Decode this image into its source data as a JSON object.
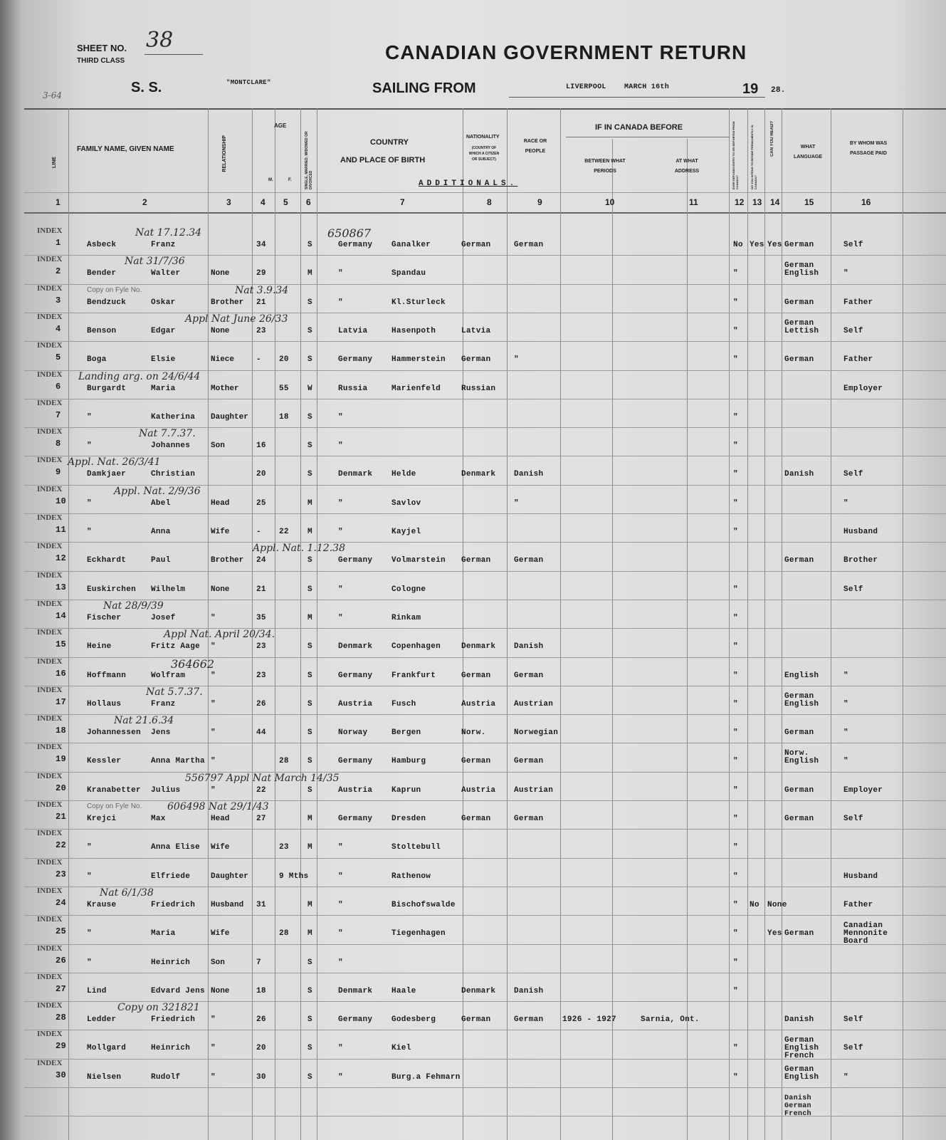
{
  "header": {
    "sheet_label": "SHEET NO.",
    "sheet_no": "38",
    "class": "THIRD CLASS",
    "ss_label": "S. S.",
    "ship": "\"MONTCLARE\"",
    "title": "CANADIAN GOVERNMENT RETURN",
    "sailing_label": "SAILING FROM",
    "port": "LIVERPOOL",
    "date": "MARCH 16th",
    "year_prefix": "19",
    "year_suffix": "28.",
    "margin_note": "3-64",
    "section": "ADDITIONALS."
  },
  "columns": {
    "line": "LINE",
    "names": "FAMILY NAME,  GIVEN NAME",
    "relationship": "RELATIONSHIP",
    "age": "AGE",
    "m": "M.",
    "f": "F.",
    "marital": "SINGLE, MARRIED, WIDOWED OR DIVORCED",
    "country_1": "COUNTRY",
    "country_2": "AND PLACE OF BIRTH",
    "nationality": "NATIONALITY",
    "nationality_sub": "(COUNTRY OF WHICH A CITIZEN OR SUBJECT)",
    "race": "RACE OR PEOPLE",
    "canada_before": "IF IN CANADA BEFORE",
    "periods": "BETWEEN WHAT PERIODS",
    "address": "AT WHAT ADDRESS",
    "refused": "EVER REFUSED ENTRY TO OR DEPORTED FROM CANADA?",
    "intend": "DO YOU INTEND TO RESIDE PERMANENTLY IN CANADA?",
    "read": "CAN YOU READ?",
    "language": "WHAT LANGUAGE",
    "paid": "BY WHOM WAS PASSAGE PAID",
    "numbers": [
      "1",
      "2",
      "3",
      "4",
      "5",
      "6",
      "7",
      "8",
      "9",
      "10",
      "11",
      "12",
      "13",
      "14",
      "15",
      "16"
    ]
  },
  "rows": [
    {
      "line": "1",
      "family": "Asbeck",
      "given": "Franz",
      "rel": "",
      "m": "34",
      "f": "",
      "marital": "S",
      "country": "Germany",
      "place": "Ganalker",
      "nat": "German",
      "race": "German",
      "periods": "",
      "address": "",
      "refused": "No",
      "intend": "Yes",
      "read": "Yes",
      "lang": "German",
      "paid": "Self"
    },
    {
      "line": "2",
      "family": "Bender",
      "given": "Walter",
      "rel": "None",
      "m": "29",
      "f": "",
      "marital": "M",
      "country": "\"",
      "place": "Spandau",
      "nat": "",
      "race": "",
      "periods": "",
      "address": "",
      "refused": "\"",
      "intend": "",
      "read": "",
      "lang": "German English",
      "paid": "\""
    },
    {
      "line": "3",
      "family": "Bendzuck",
      "given": "Oskar",
      "rel": "Brother",
      "m": "21",
      "f": "",
      "marital": "S",
      "country": "\"",
      "place": "Kl.Sturleck",
      "nat": "",
      "race": "",
      "periods": "",
      "address": "",
      "refused": "\"",
      "intend": "",
      "read": "",
      "lang": "German",
      "paid": "Father"
    },
    {
      "line": "4",
      "family": "Benson",
      "given": "Edgar",
      "rel": "None",
      "m": "23",
      "f": "",
      "marital": "S",
      "country": "Latvia",
      "place": "Hasenpoth",
      "nat": "Latvia",
      "race": "",
      "periods": "",
      "address": "",
      "refused": "\"",
      "intend": "",
      "read": "",
      "lang": "German Lettish",
      "paid": "Self"
    },
    {
      "line": "5",
      "family": "Boga",
      "given": "Elsie",
      "rel": "Niece",
      "m": "-",
      "f": "20",
      "marital": "S",
      "country": "Germany",
      "place": "Hammerstein",
      "nat": "German",
      "race": "\"",
      "periods": "",
      "address": "",
      "refused": "\"",
      "intend": "",
      "read": "",
      "lang": "German",
      "paid": "Father"
    },
    {
      "line": "6",
      "family": "Burgardt",
      "given": "Maria",
      "rel": "Mother",
      "m": "",
      "f": "55",
      "marital": "W",
      "country": "Russia",
      "place": "Marienfeld",
      "nat": "Russian",
      "race": "",
      "periods": "",
      "address": "",
      "refused": "",
      "intend": "",
      "read": "",
      "lang": "",
      "paid": "Employer"
    },
    {
      "line": "7",
      "family": "\"",
      "given": "Katherina",
      "rel": "Daughter",
      "m": "",
      "f": "18",
      "marital": "S",
      "country": "\"",
      "place": "",
      "nat": "",
      "race": "",
      "periods": "",
      "address": "",
      "refused": "\"",
      "intend": "",
      "read": "",
      "lang": "",
      "paid": ""
    },
    {
      "line": "8",
      "family": "\"",
      "given": "Johannes",
      "rel": "Son",
      "m": "16",
      "f": "",
      "marital": "S",
      "country": "\"",
      "place": "",
      "nat": "",
      "race": "",
      "periods": "",
      "address": "",
      "refused": "\"",
      "intend": "",
      "read": "",
      "lang": "",
      "paid": ""
    },
    {
      "line": "9",
      "family": "Damkjaer",
      "given": "Christian",
      "rel": "",
      "m": "20",
      "f": "",
      "marital": "S",
      "country": "Denmark",
      "place": "Helde",
      "nat": "Denmark",
      "race": "Danish",
      "periods": "",
      "address": "",
      "refused": "\"",
      "intend": "",
      "read": "",
      "lang": "Danish",
      "paid": "Self"
    },
    {
      "line": "10",
      "family": "\"",
      "given": "Abel",
      "rel": "Head",
      "m": "25",
      "f": "",
      "marital": "M",
      "country": "\"",
      "place": "Savlov",
      "nat": "",
      "race": "\"",
      "periods": "",
      "address": "",
      "refused": "\"",
      "intend": "",
      "read": "",
      "lang": "",
      "paid": "\""
    },
    {
      "line": "11",
      "family": "\"",
      "given": "Anna",
      "rel": "Wife",
      "m": "-",
      "f": "22",
      "marital": "M",
      "country": "\"",
      "place": "Kayjel",
      "nat": "",
      "race": "",
      "periods": "",
      "address": "",
      "refused": "\"",
      "intend": "",
      "read": "",
      "lang": "",
      "paid": "Husband"
    },
    {
      "line": "12",
      "family": "Eckhardt",
      "given": "Paul",
      "rel": "Brother",
      "m": "24",
      "f": "",
      "marital": "S",
      "country": "Germany",
      "place": "Volmarstein",
      "nat": "German",
      "race": "German",
      "periods": "",
      "address": "",
      "refused": "",
      "intend": "",
      "read": "",
      "lang": "German",
      "paid": "Brother"
    },
    {
      "line": "13",
      "family": "Euskirchen",
      "given": "Wilhelm",
      "rel": "None",
      "m": "21",
      "f": "",
      "marital": "S",
      "country": "\"",
      "place": "Cologne",
      "nat": "",
      "race": "",
      "periods": "",
      "address": "",
      "refused": "\"",
      "intend": "",
      "read": "",
      "lang": "",
      "paid": "Self"
    },
    {
      "line": "14",
      "family": "Fischer",
      "given": "Josef",
      "rel": "\"",
      "m": "35",
      "f": "",
      "marital": "M",
      "country": "\"",
      "place": "Rinkam",
      "nat": "",
      "race": "",
      "periods": "",
      "address": "",
      "refused": "\"",
      "intend": "",
      "read": "",
      "lang": "",
      "paid": ""
    },
    {
      "line": "15",
      "family": "Heine",
      "given": "Fritz Aage",
      "rel": "\"",
      "m": "23",
      "f": "",
      "marital": "S",
      "country": "Denmark",
      "place": "Copenhagen",
      "nat": "Denmark",
      "race": "Danish",
      "periods": "",
      "address": "",
      "refused": "\"",
      "intend": "",
      "read": "",
      "lang": "",
      "paid": ""
    },
    {
      "line": "16",
      "family": "Hoffmann",
      "given": "Wolfram",
      "rel": "\"",
      "m": "23",
      "f": "",
      "marital": "S",
      "country": "Germany",
      "place": "Frankfurt",
      "nat": "German",
      "race": "German",
      "periods": "",
      "address": "",
      "refused": "\"",
      "intend": "",
      "read": "",
      "lang": "English",
      "paid": "\""
    },
    {
      "line": "17",
      "family": "Hollaus",
      "given": "Franz",
      "rel": "\"",
      "m": "26",
      "f": "",
      "marital": "S",
      "country": "Austria",
      "place": "Fusch",
      "nat": "Austria",
      "race": "Austrian",
      "periods": "",
      "address": "",
      "refused": "\"",
      "intend": "",
      "read": "",
      "lang": "German English",
      "paid": "\""
    },
    {
      "line": "18",
      "family": "Johannessen",
      "given": "Jens",
      "rel": "\"",
      "m": "44",
      "f": "",
      "marital": "S",
      "country": "Norway",
      "place": "Bergen",
      "nat": "Norw.",
      "race": "Norwegian",
      "periods": "",
      "address": "",
      "refused": "\"",
      "intend": "",
      "read": "",
      "lang": "German",
      "paid": "\""
    },
    {
      "line": "19",
      "family": "Kessler",
      "given": "Anna Martha",
      "rel": "\"",
      "m": "",
      "f": "28",
      "marital": "S",
      "country": "Germany",
      "place": "Hamburg",
      "nat": "German",
      "race": "German",
      "periods": "",
      "address": "",
      "refused": "\"",
      "intend": "",
      "read": "",
      "lang": "Norw. English",
      "paid": "\""
    },
    {
      "line": "20",
      "family": "Kranabetter",
      "given": "Julius",
      "rel": "\"",
      "m": "22",
      "f": "",
      "marital": "S",
      "country": "Austria",
      "place": "Kaprun",
      "nat": "Austria",
      "race": "Austrian",
      "periods": "",
      "address": "",
      "refused": "\"",
      "intend": "",
      "read": "",
      "lang": "German",
      "paid": "Employer"
    },
    {
      "line": "21",
      "family": "Krejci",
      "given": "Max",
      "rel": "Head",
      "m": "27",
      "f": "",
      "marital": "M",
      "country": "Germany",
      "place": "Dresden",
      "nat": "German",
      "race": "German",
      "periods": "",
      "address": "",
      "refused": "\"",
      "intend": "",
      "read": "",
      "lang": "German",
      "paid": "Self"
    },
    {
      "line": "22",
      "family": "\"",
      "given": "Anna Elise",
      "rel": "Wife",
      "m": "",
      "f": "23",
      "marital": "M",
      "country": "\"",
      "place": "Stoltebull",
      "nat": "",
      "race": "",
      "periods": "",
      "address": "",
      "refused": "\"",
      "intend": "",
      "read": "",
      "lang": "",
      "paid": ""
    },
    {
      "line": "23",
      "family": "\"",
      "given": "Elfriede",
      "rel": "Daughter",
      "m": "",
      "f": "9 Mths",
      "marital": "",
      "country": "\"",
      "place": "Rathenow",
      "nat": "",
      "race": "",
      "periods": "",
      "address": "",
      "refused": "\"",
      "intend": "",
      "read": "",
      "lang": "",
      "paid": "Husband"
    },
    {
      "line": "24",
      "family": "Krause",
      "given": "Friedrich",
      "rel": "Husband",
      "m": "31",
      "f": "",
      "marital": "M",
      "country": "\"",
      "place": "Bischofswalde",
      "nat": "",
      "race": "",
      "periods": "",
      "address": "",
      "refused": "\"",
      "intend": "No",
      "read": "None",
      "lang": "",
      "paid": "Father"
    },
    {
      "line": "25",
      "family": "\"",
      "given": "Maria",
      "rel": "Wife",
      "m": "",
      "f": "28",
      "marital": "M",
      "country": "\"",
      "place": "Tiegenhagen",
      "nat": "",
      "race": "",
      "periods": "",
      "address": "",
      "refused": "\"",
      "intend": "",
      "read": "Yes",
      "lang": "German",
      "paid": "Canadian Mennonite Board"
    },
    {
      "line": "26",
      "family": "\"",
      "given": "Heinrich",
      "rel": "Son",
      "m": "7",
      "f": "",
      "marital": "S",
      "country": "\"",
      "place": "",
      "nat": "",
      "race": "",
      "periods": "",
      "address": "",
      "refused": "\"",
      "intend": "",
      "read": "",
      "lang": "",
      "paid": ""
    },
    {
      "line": "27",
      "family": "Lind",
      "given": "Edvard Jens",
      "rel": "None",
      "m": "18",
      "f": "",
      "marital": "S",
      "country": "Denmark",
      "place": "Haale",
      "nat": "Denmark",
      "race": "Danish",
      "periods": "",
      "address": "",
      "refused": "\"",
      "intend": "",
      "read": "",
      "lang": "",
      "paid": ""
    },
    {
      "line": "28",
      "family": "Ledder",
      "given": "Friedrich",
      "rel": "\"",
      "m": "26",
      "f": "",
      "marital": "S",
      "country": "Germany",
      "place": "Godesberg",
      "nat": "German",
      "race": "German",
      "periods": "1926 - 1927",
      "address": "Sarnia, Ont.",
      "refused": "",
      "intend": "",
      "read": "",
      "lang": "Danish",
      "paid": "Self"
    },
    {
      "line": "29",
      "family": "Mollgard",
      "given": "Heinrich",
      "rel": "\"",
      "m": "20",
      "f": "",
      "marital": "S",
      "country": "\"",
      "place": "Kiel",
      "nat": "",
      "race": "",
      "periods": "",
      "address": "",
      "refused": "\"",
      "intend": "",
      "read": "",
      "lang": "German English French",
      "paid": "Self"
    },
    {
      "line": "30",
      "family": "Nielsen",
      "given": "Rudolf",
      "rel": "\"",
      "m": "30",
      "f": "",
      "marital": "S",
      "country": "\"",
      "place": "Burg.a Fehmarn",
      "nat": "",
      "race": "",
      "periods": "",
      "address": "",
      "refused": "\"",
      "intend": "",
      "read": "",
      "lang": "German English",
      "paid": "\""
    }
  ],
  "extra_language": "Danish German French",
  "stamps": {
    "index": "INDEX",
    "copy_on_file": "Copy on Fyle No."
  },
  "annotations": [
    {
      "row": 1,
      "text": "Nat 17.12.34"
    },
    {
      "row": 1,
      "text": "650867"
    },
    {
      "row": 2,
      "text": "Nat 31/7/36"
    },
    {
      "row": 3,
      "text": "Nat 3.9.34"
    },
    {
      "row": 4,
      "text": "Appl Nat June 26/33"
    },
    {
      "row": 6,
      "text": "Landing arg. on 24/6/44"
    },
    {
      "row": 8,
      "text": "Nat 7.7.37."
    },
    {
      "row": 9,
      "text": "Appl. Nat. 26/3/41"
    },
    {
      "row": 10,
      "text": "Appl. Nat. 2/9/36"
    },
    {
      "row": 12,
      "text": "Appl. Nat. 1.12.38"
    },
    {
      "row": 14,
      "text": "Nat 28/9/39"
    },
    {
      "row": 15,
      "text": "Appl Nat. April 20/34."
    },
    {
      "row": 16,
      "text": "364662"
    },
    {
      "row": 17,
      "text": "Nat 5.7.37."
    },
    {
      "row": 18,
      "text": "Nat 21.6.34"
    },
    {
      "row": 20,
      "text": "556797 Appl Nat March 14/35"
    },
    {
      "row": 21,
      "text": "606498  Nat 29/1/43"
    },
    {
      "row": 24,
      "text": "Nat 6/1/38"
    },
    {
      "row": 28,
      "text": "Copy on 321821"
    }
  ]
}
